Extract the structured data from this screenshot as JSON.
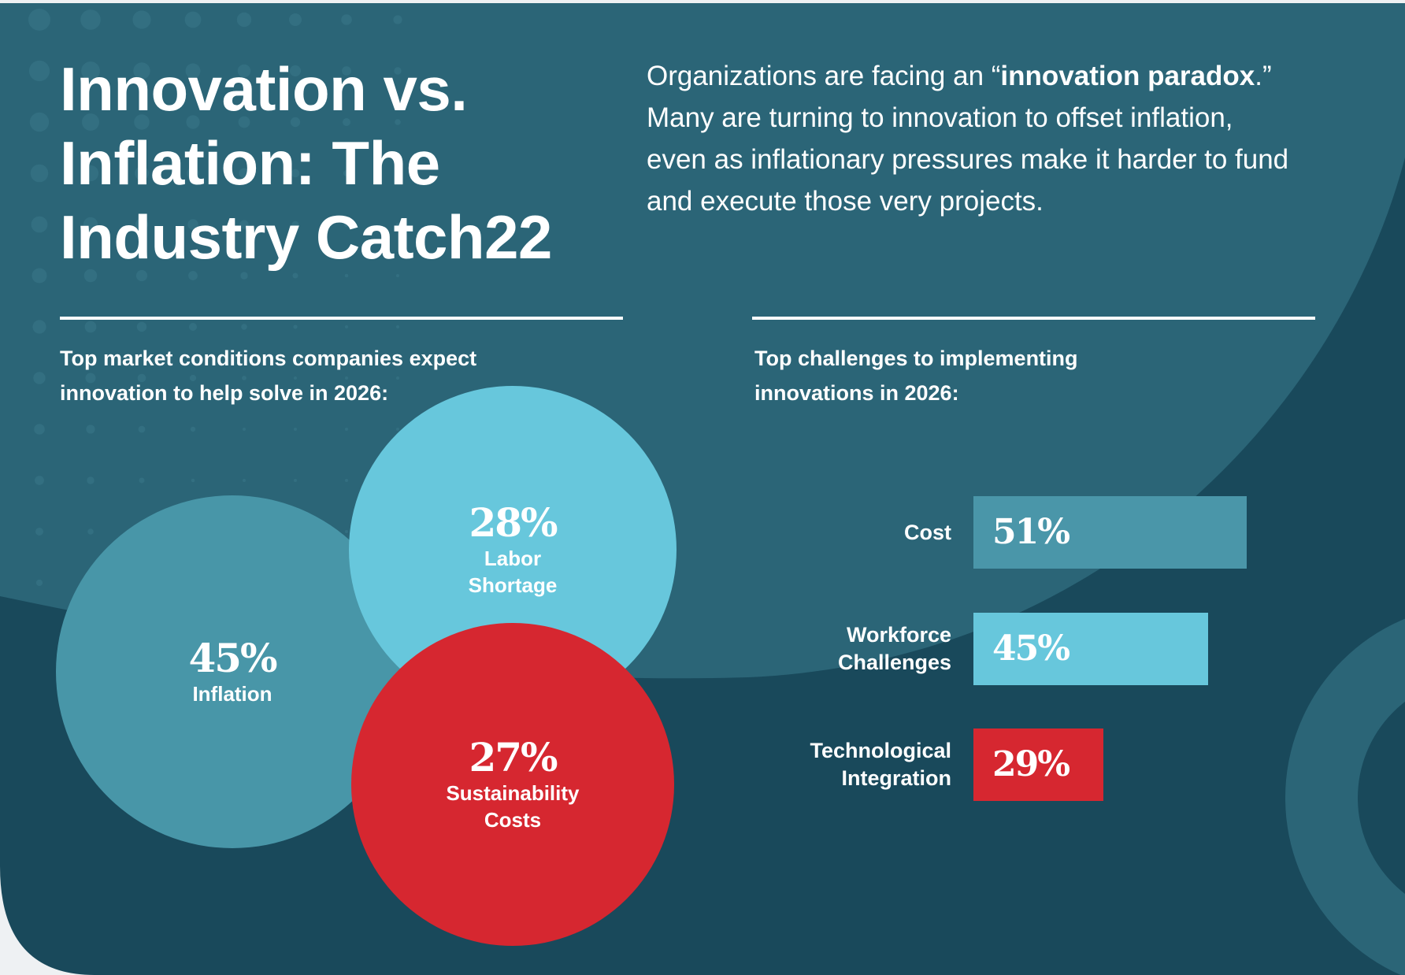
{
  "header": {
    "title_lines": [
      "Innovation vs.",
      "Inflation: The",
      "Industry Catch22"
    ],
    "intro": {
      "part1": "Organizations are facing an “",
      "bold": "innovation paradox",
      "part2": ".” Many are turning to innovation to offset inflation, even as inflationary pressures make it harder to fund and execute those very projects."
    }
  },
  "colors": {
    "background_light": "#2b6577",
    "background_dark": "#19495b",
    "teal": "#4896a8",
    "light_blue": "#67c7dc",
    "red": "#d62730"
  },
  "chart_data": [
    {
      "type": "bubble",
      "title": "Top market conditions companies expect innovation to help solve in 2026:",
      "categories": [
        "Inflation",
        "Labor Shortage",
        "Sustainability Costs"
      ],
      "label_lines": [
        [
          "Inflation"
        ],
        [
          "Labor",
          "Shortage"
        ],
        [
          "Sustainability",
          "Costs"
        ]
      ],
      "values": [
        45,
        28,
        27
      ],
      "value_labels": [
        "45%",
        "28%",
        "27%"
      ],
      "colors": [
        "#4896a8",
        "#67c7dc",
        "#d62730"
      ],
      "unit": "%"
    },
    {
      "type": "bar",
      "orientation": "horizontal",
      "title": "Top challenges to implementing innovations in 2026:",
      "categories": [
        "Cost",
        "Workforce Challenges",
        "Technological Integration"
      ],
      "label_lines": [
        [
          "Cost"
        ],
        [
          "Workforce",
          "Challenges"
        ],
        [
          "Technological",
          "Integration"
        ]
      ],
      "values": [
        51,
        45,
        29
      ],
      "value_labels": [
        "51%",
        "45%",
        "29%"
      ],
      "colors": [
        "#4a96a9",
        "#67c7dc",
        "#d62730"
      ],
      "unit": "%"
    }
  ]
}
